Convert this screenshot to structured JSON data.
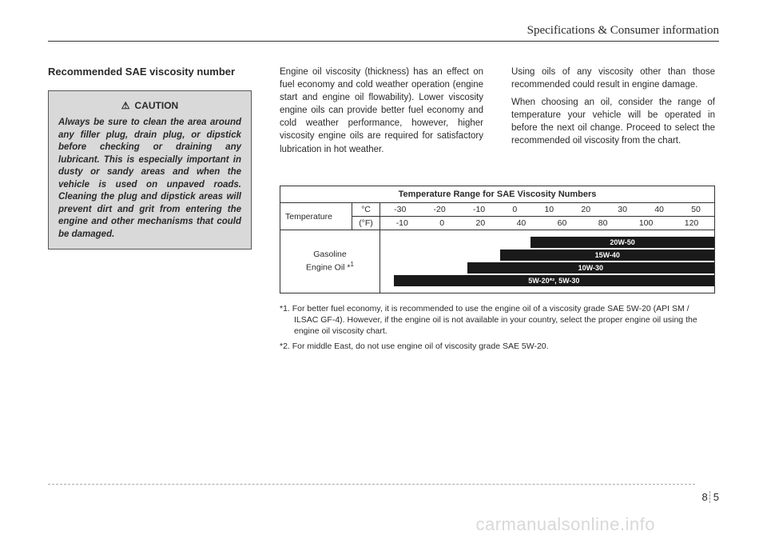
{
  "header": {
    "title": "Specifications & Consumer information"
  },
  "column1": {
    "subtitle": "Recommended SAE viscosity number",
    "caution_label": "CAUTION",
    "caution_text": "Always be sure to clean the area around any filler plug, drain plug, or dipstick before checking or draining any lubricant. This is especially important in dusty or sandy areas and when the vehicle is used on unpaved roads. Cleaning the plug and dipstick areas will prevent dirt and grit from entering the engine and other mechanisms that could be damaged."
  },
  "column2": {
    "text": "Engine oil viscosity (thickness) has an effect on fuel economy and cold weather operation (engine start and engine oil flowability). Lower viscosity engine oils can provide better fuel economy and cold weather performance, however, higher viscosity engine oils are required for satisfactory lubrication in hot weather."
  },
  "column3": {
    "text1": "Using oils of any viscosity other than those recommended could result in engine damage.",
    "text2": "When choosing an oil, consider the range of temperature your vehicle will be operated in before the next oil change. Proceed to select the recommended oil viscosity from the chart."
  },
  "chart": {
    "title": "Temperature Range for SAE Viscosity Numbers",
    "temp_label": "Temperature",
    "unit_c": "°C",
    "unit_f": "(°F)",
    "scale_c": [
      "-30",
      "-20",
      "-10",
      "0",
      "10",
      "20",
      "30",
      "40",
      "50"
    ],
    "scale_f": [
      "-10",
      "0",
      "20",
      "40",
      "60",
      "80",
      "100",
      "120"
    ],
    "oil_label": "Gasoline\nEngine Oil *",
    "oil_label_sup": "1",
    "bars": [
      {
        "label": "20W-50",
        "left_pct": 45,
        "right_pct": 0
      },
      {
        "label": "15W-40",
        "left_pct": 36,
        "right_pct": 0
      },
      {
        "label": "10W-30",
        "left_pct": 26,
        "right_pct": 0
      },
      {
        "label": "5W-20*², 5W-30",
        "left_pct": 4,
        "right_pct": 0
      }
    ],
    "bar_bg": "#1a1a1a",
    "bar_text_color": "#ffffff",
    "footnote1": "*1. For better fuel economy, it is recommended to use the engine oil of a viscosity grade SAE 5W-20 (API SM / ILSAC GF-4). However, if the engine oil is not available in your country, select the proper engine oil using the engine oil viscosity chart.",
    "footnote2": "*2. For middle East, do not use engine oil of viscosity grade SAE 5W-20."
  },
  "footer": {
    "page_section": "8",
    "page_num": "5"
  },
  "watermark": "carmanualsonline.info"
}
